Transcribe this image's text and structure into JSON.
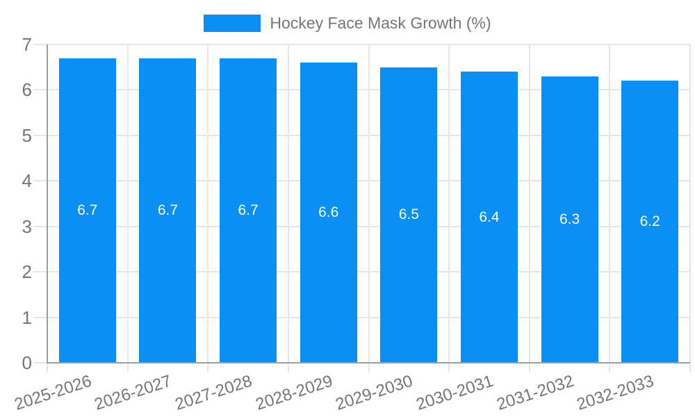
{
  "chart_data": {
    "type": "bar",
    "title": "Hockey Face Mask Growth (%)",
    "categories": [
      "2025-2026",
      "2026-2027",
      "2027-2028",
      "2028-2029",
      "2029-2030",
      "2030-2031",
      "2031-2032",
      "2032-2033"
    ],
    "values": [
      6.7,
      6.7,
      6.7,
      6.6,
      6.5,
      6.4,
      6.3,
      6.2
    ],
    "value_labels": [
      "6.7",
      "6.7",
      "6.7",
      "6.6",
      "6.5",
      "6.4",
      "6.3",
      "6.2"
    ],
    "xlabel": "",
    "ylabel": "",
    "ylim": [
      0,
      7
    ],
    "yticks": [
      0,
      1,
      2,
      3,
      4,
      5,
      6,
      7
    ],
    "grid": true,
    "legend": {
      "label": "Hockey Face Mask Growth (%)",
      "position": "top-center"
    },
    "colors": {
      "bar": "#0b8ff5",
      "bar_label": "#ffffff",
      "axis_text": "#757575",
      "grid_line": "#e6e6e6",
      "axis_line": "#9e9e9e",
      "background": "#ffffff"
    }
  }
}
